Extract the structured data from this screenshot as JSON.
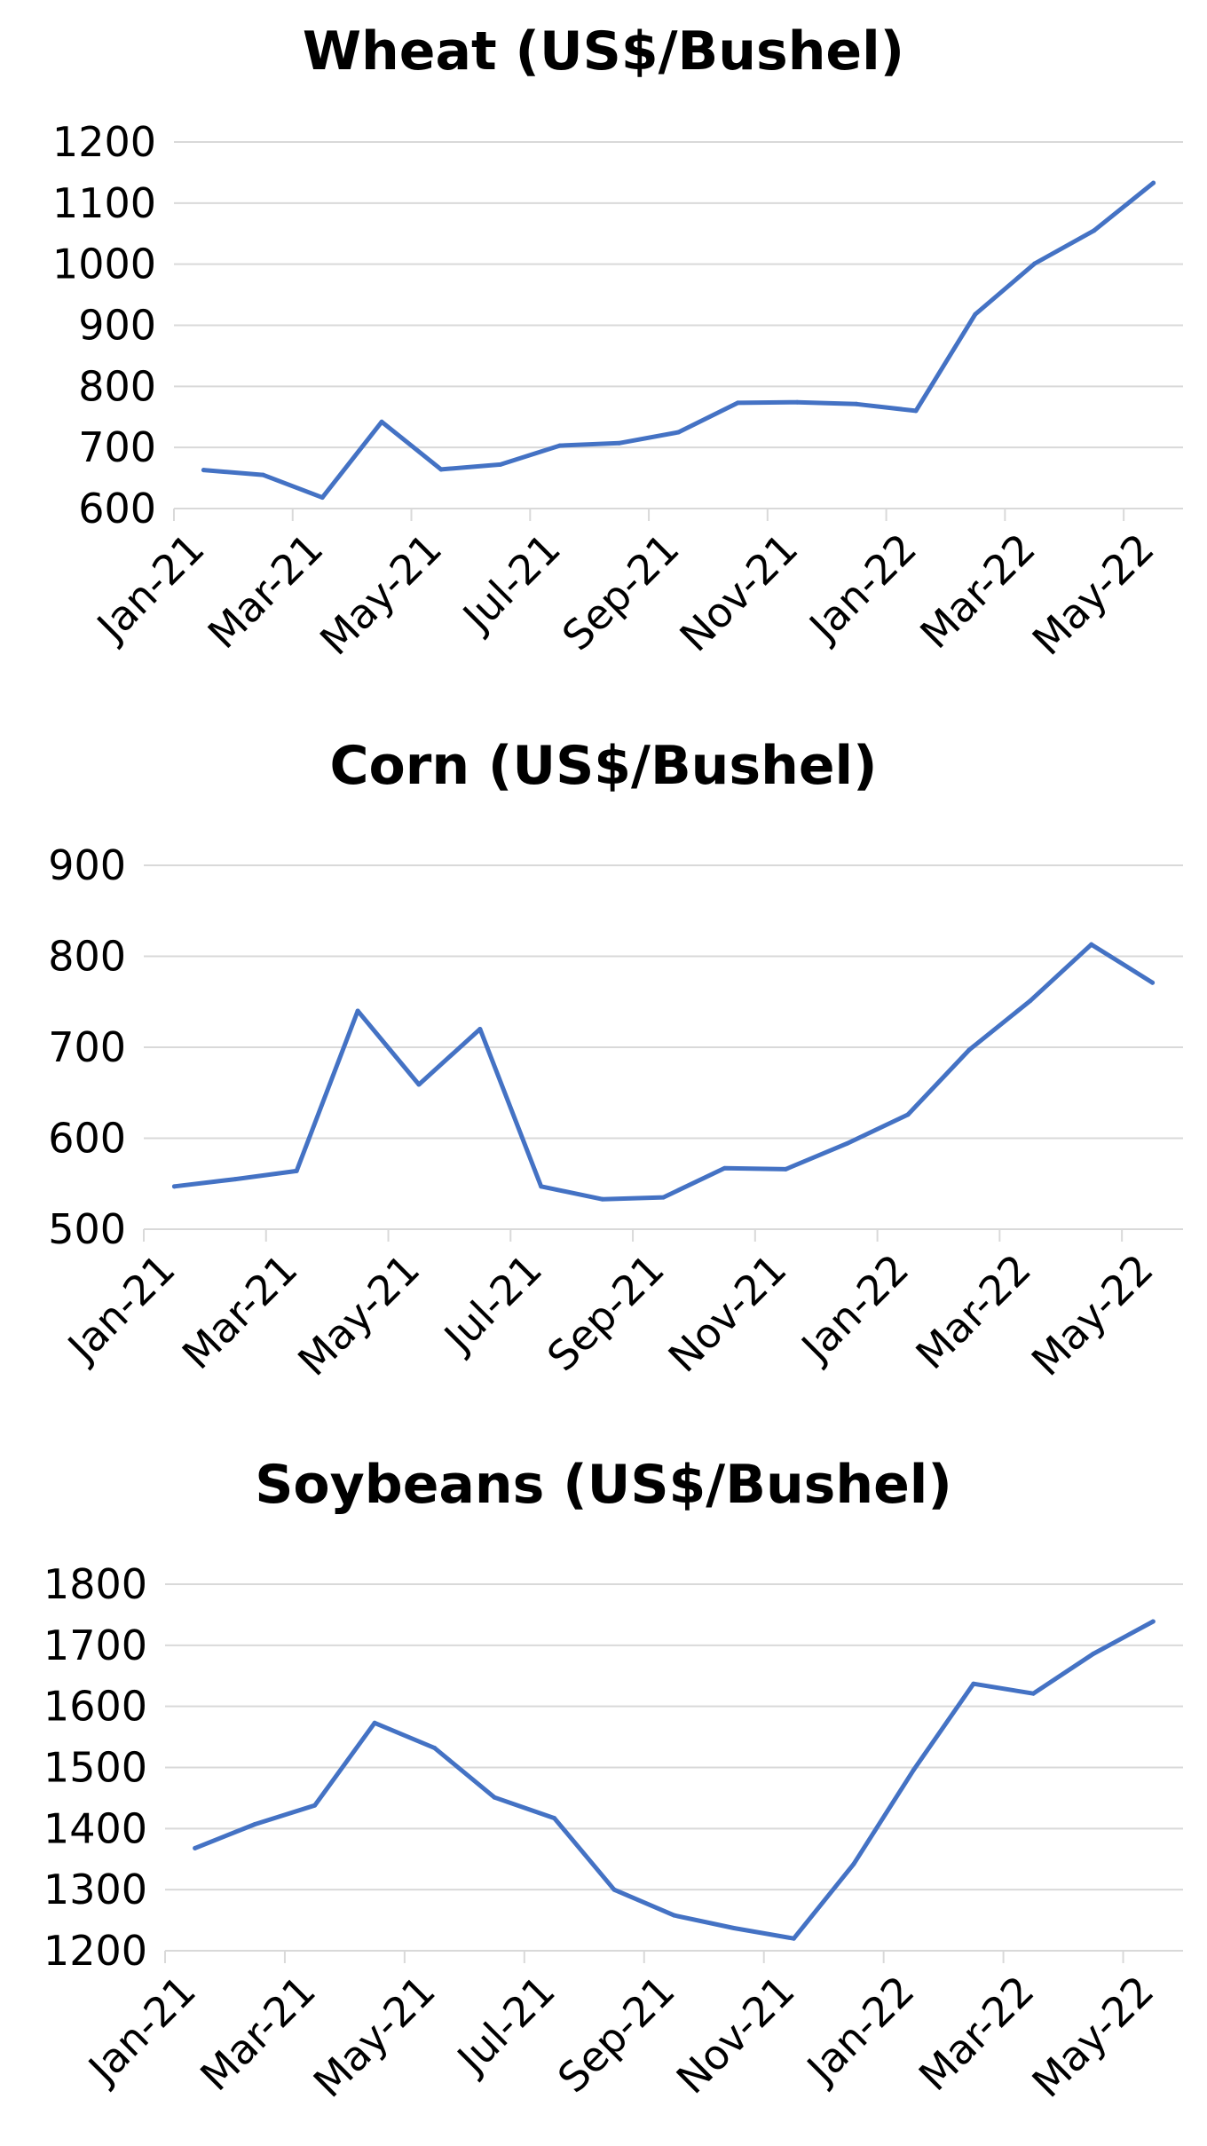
{
  "chart_data": [
    {
      "type": "line",
      "title": "Wheat (US$/Bushel)",
      "xlabel": "",
      "ylabel": "",
      "ylim": [
        600,
        1200
      ],
      "yticks": [
        600,
        700,
        800,
        900,
        1000,
        1100,
        1200
      ],
      "x_tick_labels": [
        "Jan-21",
        "Mar-21",
        "May-21",
        "Jul-21",
        "Sep-21",
        "Nov-21",
        "Jan-22",
        "Mar-22",
        "May-22"
      ],
      "grid": true,
      "color": "#4472C4",
      "series": [
        {
          "values": [
            663,
            655,
            618,
            742,
            664,
            672,
            703,
            707,
            725,
            773,
            774,
            771,
            760,
            918,
            1001,
            1055,
            1133
          ]
        }
      ]
    },
    {
      "type": "line",
      "title": "Corn (US$/Bushel)",
      "xlabel": "",
      "ylabel": "",
      "ylim": [
        500,
        900
      ],
      "yticks": [
        500,
        600,
        700,
        800,
        900
      ],
      "x_tick_labels": [
        "Jan-21",
        "Mar-21",
        "May-21",
        "Jul-21",
        "Sep-21",
        "Nov-21",
        "Jan-22",
        "Mar-22",
        "May-22"
      ],
      "grid": true,
      "color": "#4472C4",
      "series": [
        {
          "values": [
            547,
            555,
            564,
            740,
            659,
            720,
            547,
            533,
            535,
            567,
            566,
            594,
            626,
            697,
            751,
            813,
            771
          ]
        }
      ]
    },
    {
      "type": "line",
      "title": "Soybeans (US$/Bushel)",
      "xlabel": "",
      "ylabel": "",
      "ylim": [
        1200,
        1800
      ],
      "yticks": [
        1200,
        1300,
        1400,
        1500,
        1600,
        1700,
        1800
      ],
      "x_tick_labels": [
        "Jan-21",
        "Mar-21",
        "May-21",
        "Jul-21",
        "Sep-21",
        "Nov-21",
        "Jan-22",
        "Mar-22",
        "May-22"
      ],
      "grid": true,
      "color": "#4472C4",
      "series": [
        {
          "values": [
            1368,
            1407,
            1438,
            1573,
            1532,
            1451,
            1417,
            1300,
            1258,
            1237,
            1220,
            1342,
            1496,
            1637,
            1621,
            1686,
            1739
          ]
        }
      ]
    }
  ]
}
